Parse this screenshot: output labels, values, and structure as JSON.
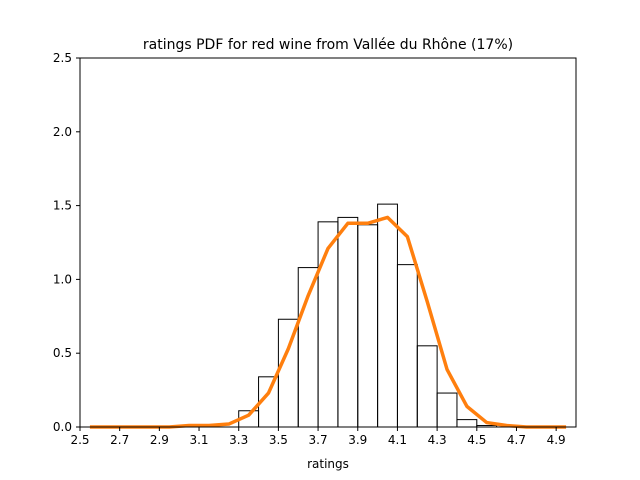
{
  "chart_data": {
    "type": "histogram+line",
    "title": "ratings PDF for red wine from Vallée du Rhône (17%)",
    "xlabel": "ratings",
    "ylabel": "",
    "xlim": [
      2.5,
      5.0
    ],
    "ylim": [
      0,
      2.5
    ],
    "xticks": [
      "2.5",
      "2.7",
      "2.9",
      "3.1",
      "3.3",
      "3.5",
      "3.7",
      "3.9",
      "4.1",
      "4.3",
      "4.5",
      "4.7",
      "4.9"
    ],
    "yticks": [
      "0.0",
      "0.5",
      "1.0",
      "1.5",
      "2.0",
      "2.5"
    ],
    "histogram": {
      "color": "#000000",
      "bins": [
        {
          "x0": 3.3,
          "x1": 3.4,
          "value": 0.11
        },
        {
          "x0": 3.4,
          "x1": 3.5,
          "value": 0.34
        },
        {
          "x0": 3.5,
          "x1": 3.6,
          "value": 0.73
        },
        {
          "x0": 3.6,
          "x1": 3.7,
          "value": 1.08
        },
        {
          "x0": 3.7,
          "x1": 3.8,
          "value": 1.39
        },
        {
          "x0": 3.8,
          "x1": 3.9,
          "value": 1.42
        },
        {
          "x0": 3.9,
          "x1": 4.0,
          "value": 1.37
        },
        {
          "x0": 4.0,
          "x1": 4.1,
          "value": 1.51
        },
        {
          "x0": 4.1,
          "x1": 4.2,
          "value": 1.1
        },
        {
          "x0": 4.2,
          "x1": 4.3,
          "value": 0.55
        },
        {
          "x0": 4.3,
          "x1": 4.4,
          "value": 0.23
        },
        {
          "x0": 4.4,
          "x1": 4.5,
          "value": 0.05
        },
        {
          "x0": 4.5,
          "x1": 4.6,
          "value": 0.01
        }
      ]
    },
    "line": {
      "color": "#ff7f0e",
      "points": [
        [
          2.55,
          0.0
        ],
        [
          2.65,
          0.0
        ],
        [
          2.75,
          0.0
        ],
        [
          2.85,
          0.0
        ],
        [
          2.95,
          0.0
        ],
        [
          3.05,
          0.01
        ],
        [
          3.15,
          0.01
        ],
        [
          3.25,
          0.02
        ],
        [
          3.35,
          0.08
        ],
        [
          3.45,
          0.23
        ],
        [
          3.55,
          0.53
        ],
        [
          3.65,
          0.89
        ],
        [
          3.75,
          1.21
        ],
        [
          3.85,
          1.38
        ],
        [
          3.95,
          1.38
        ],
        [
          4.05,
          1.42
        ],
        [
          4.15,
          1.29
        ],
        [
          4.25,
          0.85
        ],
        [
          4.35,
          0.39
        ],
        [
          4.45,
          0.14
        ],
        [
          4.55,
          0.03
        ],
        [
          4.65,
          0.01
        ],
        [
          4.75,
          0.0
        ],
        [
          4.85,
          0.0
        ],
        [
          4.95,
          0.0
        ]
      ]
    },
    "grid": false,
    "legend": "none"
  }
}
